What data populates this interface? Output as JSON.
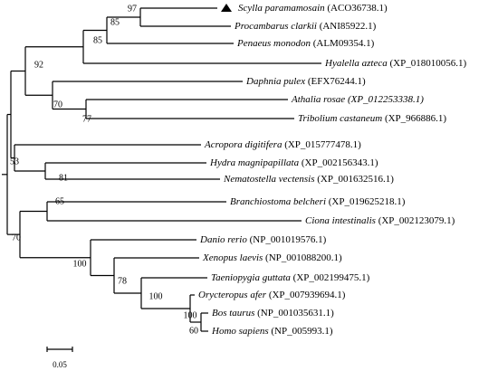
{
  "leaves": [
    {
      "name": "Scylla paramamosain",
      "accession": "(ACO36738.1)"
    },
    {
      "name": "Procambarus clarkii",
      "accession": "(ANI85922.1)"
    },
    {
      "name": "Penaeus monodon",
      "accession": "(ALM09354.1)"
    },
    {
      "name": "Hyalella azteca",
      "accession": "(XP_018010056.1)"
    },
    {
      "name": "Daphnia pulex",
      "accession": "(EFX76244.1)"
    },
    {
      "name": "Athalia rosae",
      "accession": "(XP_012253338.1)"
    },
    {
      "name": "Tribolium castaneum",
      "accession": "(XP_966886.1)"
    },
    {
      "name": "Acropora digitifera",
      "accession": "(XP_015777478.1)"
    },
    {
      "name": "Hydra magnipapillata",
      "accession": "(XP_002156343.1)"
    },
    {
      "name": "Nematostella vectensis",
      "accession": "(XP_001632516.1)"
    },
    {
      "name": "Branchiostoma belcheri",
      "accession": "(XP_019625218.1)"
    },
    {
      "name": "Ciona intestinalis",
      "accession": "(XP_002123079.1)"
    },
    {
      "name": "Danio rerio",
      "accession": "(NP_001019576.1)"
    },
    {
      "name": "Xenopus laevis",
      "accession": "(NP_001088200.1)"
    },
    {
      "name": "Taeniopygia guttata",
      "accession": "(XP_002199475.1)"
    },
    {
      "name": "Orycteropus afer",
      "accession": "(XP_007939694.1)"
    },
    {
      "name": "Bos taurus",
      "accession": "(NP_001035631.1)"
    },
    {
      "name": "Homo sapiens",
      "accession": "(NP_005993.1)"
    }
  ],
  "support_values": [
    97,
    85,
    85,
    92,
    70,
    77,
    53,
    81,
    65,
    70,
    100,
    78,
    100,
    100,
    60
  ],
  "scale_bar": {
    "label": "0.05"
  }
}
